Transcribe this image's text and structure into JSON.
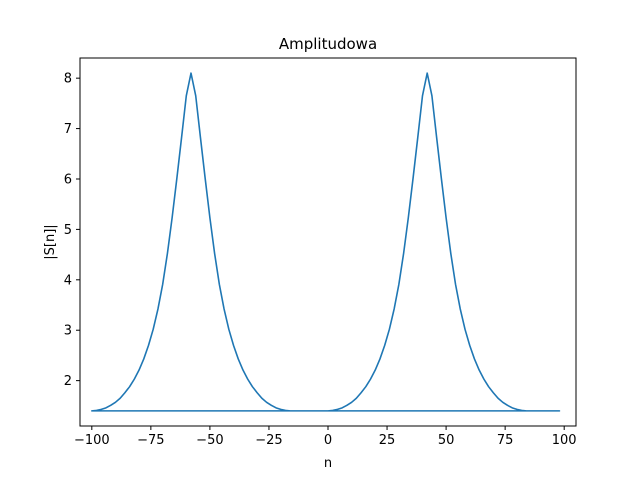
{
  "chart_data": {
    "type": "line",
    "title": "Amplitudowa",
    "xlabel": "n",
    "ylabel": "|S[n]|",
    "xlim": [
      -105,
      105
    ],
    "ylim": [
      1.1,
      8.4
    ],
    "xticks": [
      -100,
      -75,
      -50,
      -25,
      0,
      25,
      50,
      75,
      100
    ],
    "xtick_labels": [
      "−100",
      "−75",
      "−50",
      "−25",
      "0",
      "25",
      "50",
      "75",
      "100"
    ],
    "yticks": [
      2,
      3,
      4,
      5,
      6,
      7,
      8
    ],
    "ytick_labels": [
      "2",
      "3",
      "4",
      "5",
      "6",
      "7",
      "8"
    ],
    "grid": false,
    "series": [
      {
        "color": "#1f77b4",
        "x": [
          0,
          2,
          4,
          6,
          8,
          10,
          12,
          14,
          16,
          18,
          20,
          22,
          24,
          26,
          28,
          30,
          32,
          34,
          36,
          38,
          40,
          42,
          44,
          46,
          48,
          50,
          52,
          54,
          56,
          58,
          60,
          62,
          64,
          66,
          68,
          70,
          72,
          74,
          76,
          78,
          80,
          82,
          84,
          86,
          88,
          90,
          92,
          94,
          96,
          98,
          -100,
          -98,
          -96,
          -94,
          -92,
          -90,
          -88,
          -86,
          -84,
          -82,
          -80,
          -78,
          -76,
          -74,
          -72,
          -70,
          -68,
          -66,
          -64,
          -62,
          -60,
          -58,
          -56,
          -54,
          -52,
          -50,
          -48,
          -46,
          -44,
          -42,
          -40,
          -38,
          -36,
          -34,
          -32,
          -30,
          -28,
          -26,
          -24,
          -22,
          -20,
          -18,
          -16,
          -14,
          -12,
          -10,
          -8,
          -6,
          -4,
          -2,
          0
        ],
        "y": [
          1.4,
          1.41,
          1.43,
          1.46,
          1.51,
          1.57,
          1.65,
          1.76,
          1.88,
          2.03,
          2.21,
          2.43,
          2.7,
          3.02,
          3.42,
          3.91,
          4.52,
          5.23,
          6.01,
          6.82,
          7.65,
          8.1,
          7.65,
          6.82,
          6.01,
          5.23,
          4.52,
          3.91,
          3.42,
          3.02,
          2.7,
          2.43,
          2.21,
          2.03,
          1.88,
          1.76,
          1.65,
          1.57,
          1.51,
          1.46,
          1.43,
          1.41,
          1.4,
          1.4,
          1.4,
          1.4,
          1.4,
          1.4,
          1.4,
          1.4,
          1.4,
          1.41,
          1.43,
          1.46,
          1.51,
          1.57,
          1.65,
          1.76,
          1.88,
          2.03,
          2.21,
          2.43,
          2.7,
          3.02,
          3.42,
          3.91,
          4.52,
          5.23,
          6.01,
          6.82,
          7.65,
          8.1,
          7.65,
          6.82,
          6.01,
          5.23,
          4.52,
          3.91,
          3.42,
          3.02,
          2.7,
          2.43,
          2.21,
          2.03,
          1.88,
          1.76,
          1.65,
          1.57,
          1.51,
          1.46,
          1.43,
          1.41,
          1.4,
          1.4,
          1.4,
          1.4,
          1.4,
          1.4,
          1.4,
          1.4,
          1.4
        ]
      }
    ]
  }
}
